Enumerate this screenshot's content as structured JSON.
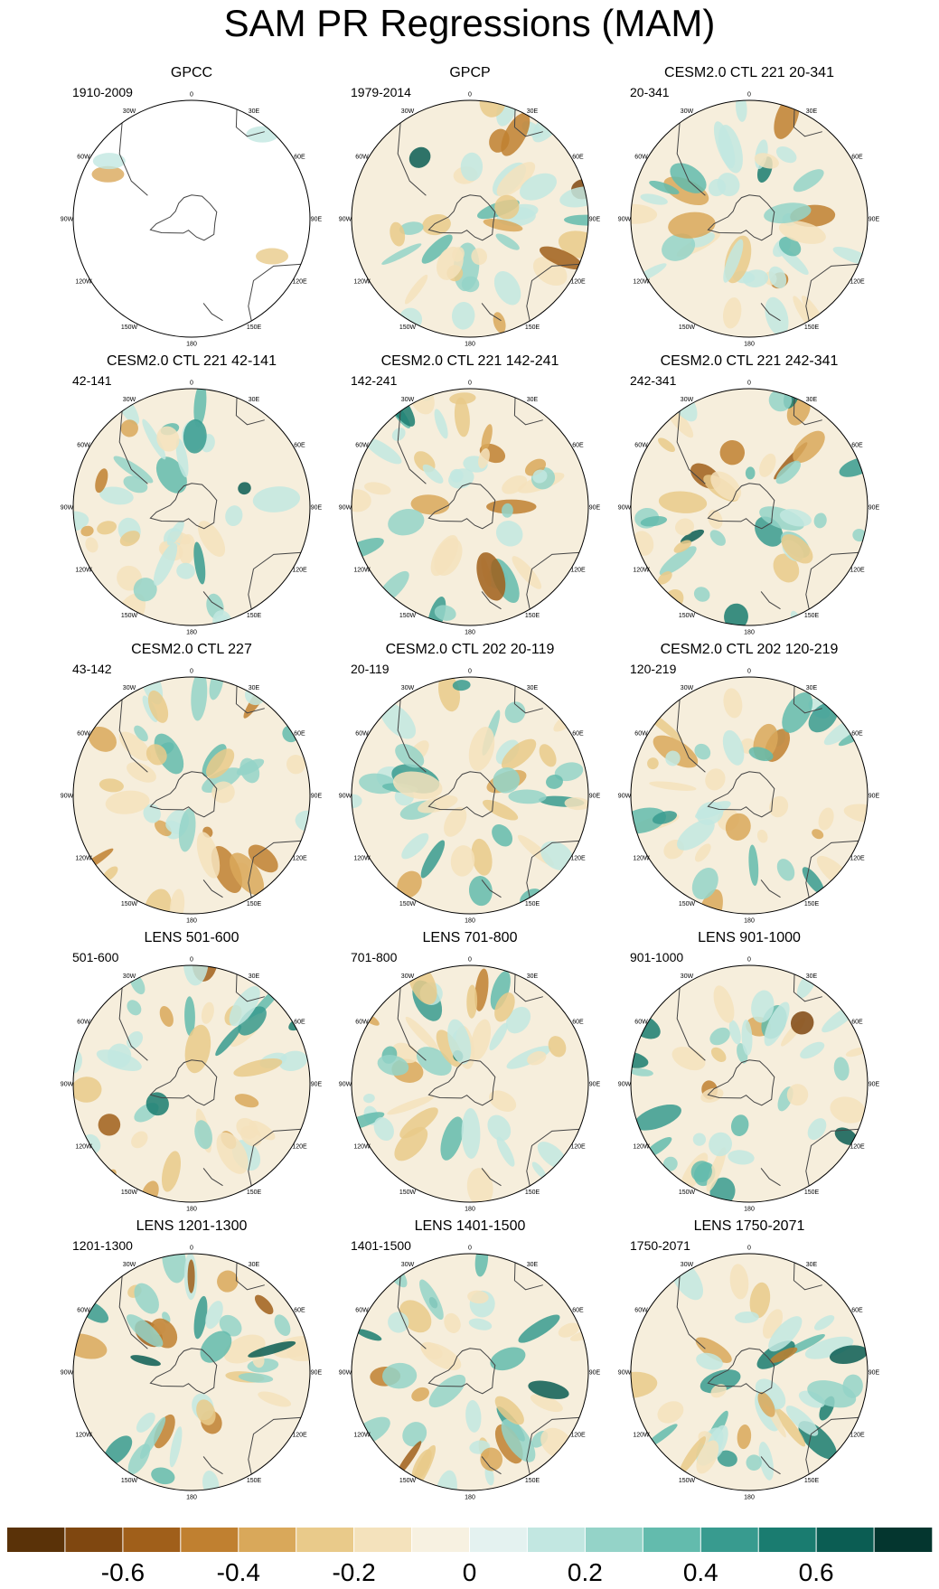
{
  "chart_data": {
    "type": "heatmap",
    "projection": "south-polar-stereographic",
    "title": "SAM PR Regressions (MAM)",
    "longitude_labels": [
      "0",
      "30E",
      "60E",
      "90E",
      "120E",
      "150E",
      "180",
      "150W",
      "120W",
      "90W",
      "60W",
      "30W"
    ],
    "panels": [
      {
        "title": "GPCC",
        "period": "1910-2009"
      },
      {
        "title": "GPCP",
        "period": "1979-2014"
      },
      {
        "title": "CESM2.0 CTL 221 20-341",
        "period": "20-341"
      },
      {
        "title": "CESM2.0 CTL 221 42-141",
        "period": "42-141"
      },
      {
        "title": "CESM2.0 CTL 221 142-241",
        "period": "142-241"
      },
      {
        "title": "CESM2.0 CTL 221 242-341",
        "period": "242-341"
      },
      {
        "title": "CESM2.0 CTL 227",
        "period": "43-142"
      },
      {
        "title": "CESM2.0 CTL 202 20-119",
        "period": "20-119"
      },
      {
        "title": "CESM2.0 CTL 202 120-219",
        "period": "120-219"
      },
      {
        "title": "LENS 501-600",
        "period": "501-600"
      },
      {
        "title": "LENS 701-800",
        "period": "701-800"
      },
      {
        "title": "LENS 901-1000",
        "period": "901-1000"
      },
      {
        "title": "LENS 1201-1300",
        "period": "1201-1300"
      },
      {
        "title": "LENS 1401-1500",
        "period": "1401-1500"
      },
      {
        "title": "LENS 1750-2071",
        "period": "1750-2071"
      }
    ],
    "colorbar": {
      "levels": [
        -0.8,
        -0.7,
        -0.6,
        -0.5,
        -0.4,
        -0.3,
        -0.2,
        -0.1,
        0,
        0.1,
        0.2,
        0.3,
        0.4,
        0.5,
        0.6,
        0.7,
        0.8
      ],
      "colors": [
        "#5a3208",
        "#7f4710",
        "#a05f1a",
        "#c08030",
        "#d9a85a",
        "#e9ca8a",
        "#f4e2bc",
        "#f7f1e1",
        "#e4f2f0",
        "#c2e7e1",
        "#94d3c8",
        "#63bbad",
        "#389b8f",
        "#1a7c70",
        "#0b5d53",
        "#04362f"
      ],
      "tick_labels": [
        "-0.6",
        "-0.4",
        "-0.2",
        "0",
        "0.2",
        "0.4",
        "0.6"
      ],
      "tick_values": [
        -0.6,
        -0.4,
        -0.2,
        0,
        0.2,
        0.4,
        0.6
      ]
    }
  }
}
